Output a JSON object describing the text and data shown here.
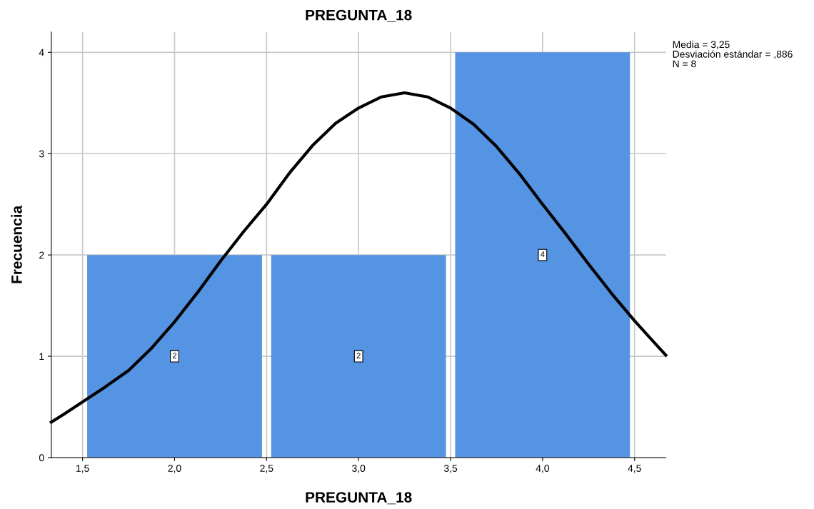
{
  "chart_data": {
    "type": "histogram",
    "title": "PREGUNTA_18",
    "xlabel": "PREGUNTA_18",
    "ylabel": "Frecuencia",
    "bins": [
      1.5,
      2.5,
      3.5,
      4.5
    ],
    "values": [
      2,
      2,
      4
    ],
    "color": "#5593e3",
    "value_labels": [
      "2",
      "2",
      "4"
    ],
    "series": [
      {
        "type": "line",
        "color": "#000000",
        "x": [
          1.33,
          1.4,
          1.5,
          1.625,
          1.75,
          1.875,
          2.0,
          2.125,
          2.25,
          2.375,
          2.5,
          2.625,
          2.75,
          2.875,
          3.0,
          3.125,
          3.25,
          3.375,
          3.5,
          3.625,
          3.75,
          3.875,
          4.0,
          4.125,
          4.25,
          4.375,
          4.5,
          4.6,
          4.67
        ],
        "values": [
          0.35,
          0.43,
          0.55,
          0.7,
          0.86,
          1.08,
          1.34,
          1.63,
          1.94,
          2.23,
          2.5,
          2.81,
          3.08,
          3.3,
          3.45,
          3.56,
          3.6,
          3.56,
          3.45,
          3.29,
          3.07,
          2.8,
          2.5,
          2.21,
          1.91,
          1.62,
          1.35,
          1.15,
          1.01
        ]
      }
    ],
    "xlim": [
      1.33,
      4.67
    ],
    "ylim": [
      0,
      4.2
    ],
    "xticks": [
      {
        "value": 1.5,
        "label": "1,5"
      },
      {
        "value": 2.0,
        "label": "2,0"
      },
      {
        "value": 2.5,
        "label": "2,5"
      },
      {
        "value": 3.0,
        "label": "3,0"
      },
      {
        "value": 3.5,
        "label": "3,5"
      },
      {
        "value": 4.0,
        "label": "4,0"
      },
      {
        "value": 4.5,
        "label": "4,5"
      }
    ],
    "yticks": [
      0,
      1,
      2,
      3,
      4
    ],
    "grid": true,
    "legend": false,
    "annotations": [
      "Media = 3,25",
      "Desviación estándar = ,886",
      "N = 8"
    ]
  }
}
